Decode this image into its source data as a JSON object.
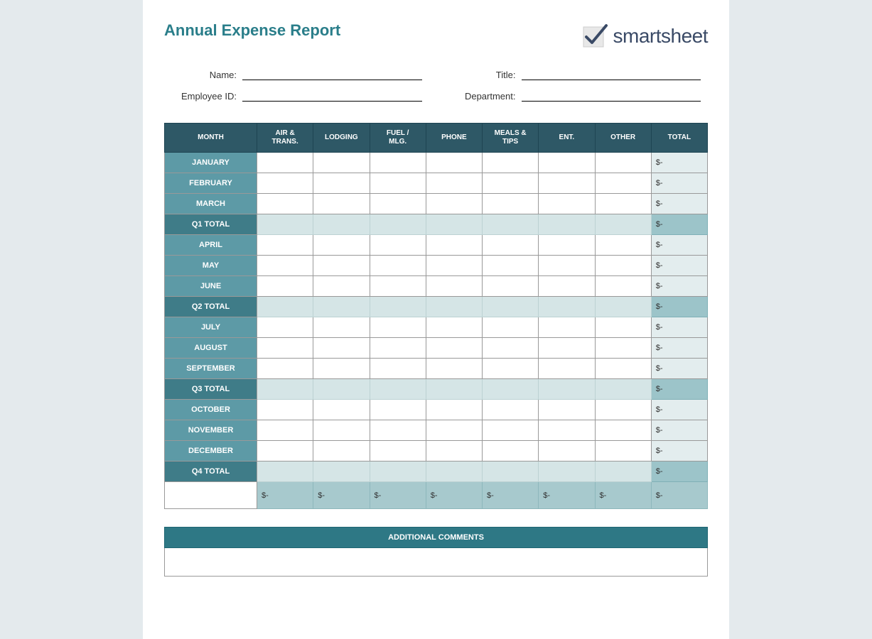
{
  "title": "Annual Expense Report",
  "logo": {
    "word1": "smart",
    "word2": "sheet"
  },
  "fields": {
    "name_label": "Name:",
    "title_label": "Title:",
    "employee_id_label": "Employee ID:",
    "department_label": "Department:"
  },
  "columns": [
    "MONTH",
    "AIR & TRANS.",
    "LODGING",
    "FUEL / MLG.",
    "PHONE",
    "MEALS & TIPS",
    "ENT.",
    "OTHER",
    "TOTAL"
  ],
  "rows": [
    {
      "label": "JANUARY",
      "type": "month",
      "total": "$-"
    },
    {
      "label": "FEBRUARY",
      "type": "month",
      "total": "$-"
    },
    {
      "label": "MARCH",
      "type": "month",
      "total": "$-"
    },
    {
      "label": "Q1 TOTAL",
      "type": "qtotal",
      "total": "$-"
    },
    {
      "label": "APRIL",
      "type": "month",
      "total": "$-"
    },
    {
      "label": "MAY",
      "type": "month",
      "total": "$-"
    },
    {
      "label": "JUNE",
      "type": "month",
      "total": "$-"
    },
    {
      "label": "Q2 TOTAL",
      "type": "qtotal",
      "total": "$-"
    },
    {
      "label": "JULY",
      "type": "month",
      "total": "$-"
    },
    {
      "label": "AUGUST",
      "type": "month",
      "total": "$-"
    },
    {
      "label": "SEPTEMBER",
      "type": "month",
      "total": "$-"
    },
    {
      "label": "Q3 TOTAL",
      "type": "qtotal",
      "total": "$-"
    },
    {
      "label": "OCTOBER",
      "type": "month",
      "total": "$-"
    },
    {
      "label": "NOVEMBER",
      "type": "month",
      "total": "$-"
    },
    {
      "label": "DECEMBER",
      "type": "month",
      "total": "$-"
    },
    {
      "label": "Q4 TOTAL",
      "type": "qtotal",
      "total": "$-"
    }
  ],
  "grand": {
    "cells": [
      "$-",
      "$-",
      "$-",
      "$-",
      "$-",
      "$-",
      "$-",
      "$-"
    ]
  },
  "comments_header": "ADDITIONAL COMMENTS",
  "colors": {
    "page_bg": "#e4eaed",
    "title": "#2a7e8a",
    "header_bg": "#2e5866",
    "month_bg": "#5d9aa6",
    "qtotal_bg": "#3f7c88",
    "qtotal_data_bg": "#d5e5e6",
    "qtotal_total_bg": "#9cc4c9",
    "total_col_bg": "#e3edee",
    "grand_bg": "#a7c9cd",
    "comments_header_bg": "#2e7885"
  }
}
